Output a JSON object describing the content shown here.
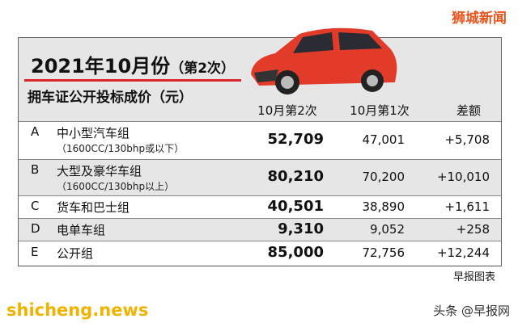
{
  "brand": "狮城新闻",
  "header": {
    "title": "2021年10月份",
    "title_suffix": "（第2次）",
    "subtitle": "拥车证公开投标成价（元）"
  },
  "table": {
    "columns": [
      "10月第2次",
      "10月第1次",
      "差额"
    ],
    "rows": [
      {
        "code": "A",
        "name": "中小型汽车组",
        "note": "（1600CC/130bhp或以下）",
        "values": [
          "52,709",
          "47,001",
          "+5,708"
        ]
      },
      {
        "code": "B",
        "name": "大型及豪华车组",
        "note": "（1600CC/130bhp以上）",
        "values": [
          "80,210",
          "70,200",
          "+10,010"
        ]
      },
      {
        "code": "C",
        "name": "货车和巴士组",
        "values": [
          "40,501",
          "38,890",
          "+1,611"
        ]
      },
      {
        "code": "D",
        "name": "电单车组",
        "values": [
          "9,310",
          "9,052",
          "+258"
        ]
      },
      {
        "code": "E",
        "name": "公开组",
        "values": [
          "85,000",
          "72,756",
          "+12,244"
        ]
      }
    ]
  },
  "source": "早报图表",
  "watermark": "shicheng.news",
  "credit": "头条 @早报网"
}
